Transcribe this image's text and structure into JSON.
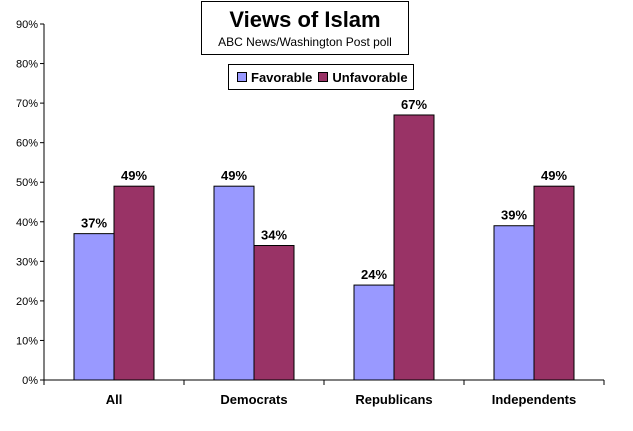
{
  "chart_data": {
    "type": "bar",
    "title": "Views of Islam",
    "subtitle": "ABC News/Washington Post poll",
    "categories": [
      "All",
      "Democrats",
      "Republicans",
      "Independents"
    ],
    "series": [
      {
        "name": "Favorable",
        "values": [
          37,
          49,
          24,
          39
        ],
        "color": "#9999ff"
      },
      {
        "name": "Unfavorable",
        "values": [
          49,
          34,
          67,
          49
        ],
        "color": "#993366"
      }
    ],
    "value_suffix": "%",
    "ylim": [
      0,
      90
    ],
    "yticks": [
      "0%",
      "10%",
      "20%",
      "30%",
      "40%",
      "50%",
      "60%",
      "70%",
      "80%",
      "90%"
    ],
    "grid": false,
    "legend_position": "top-center"
  }
}
